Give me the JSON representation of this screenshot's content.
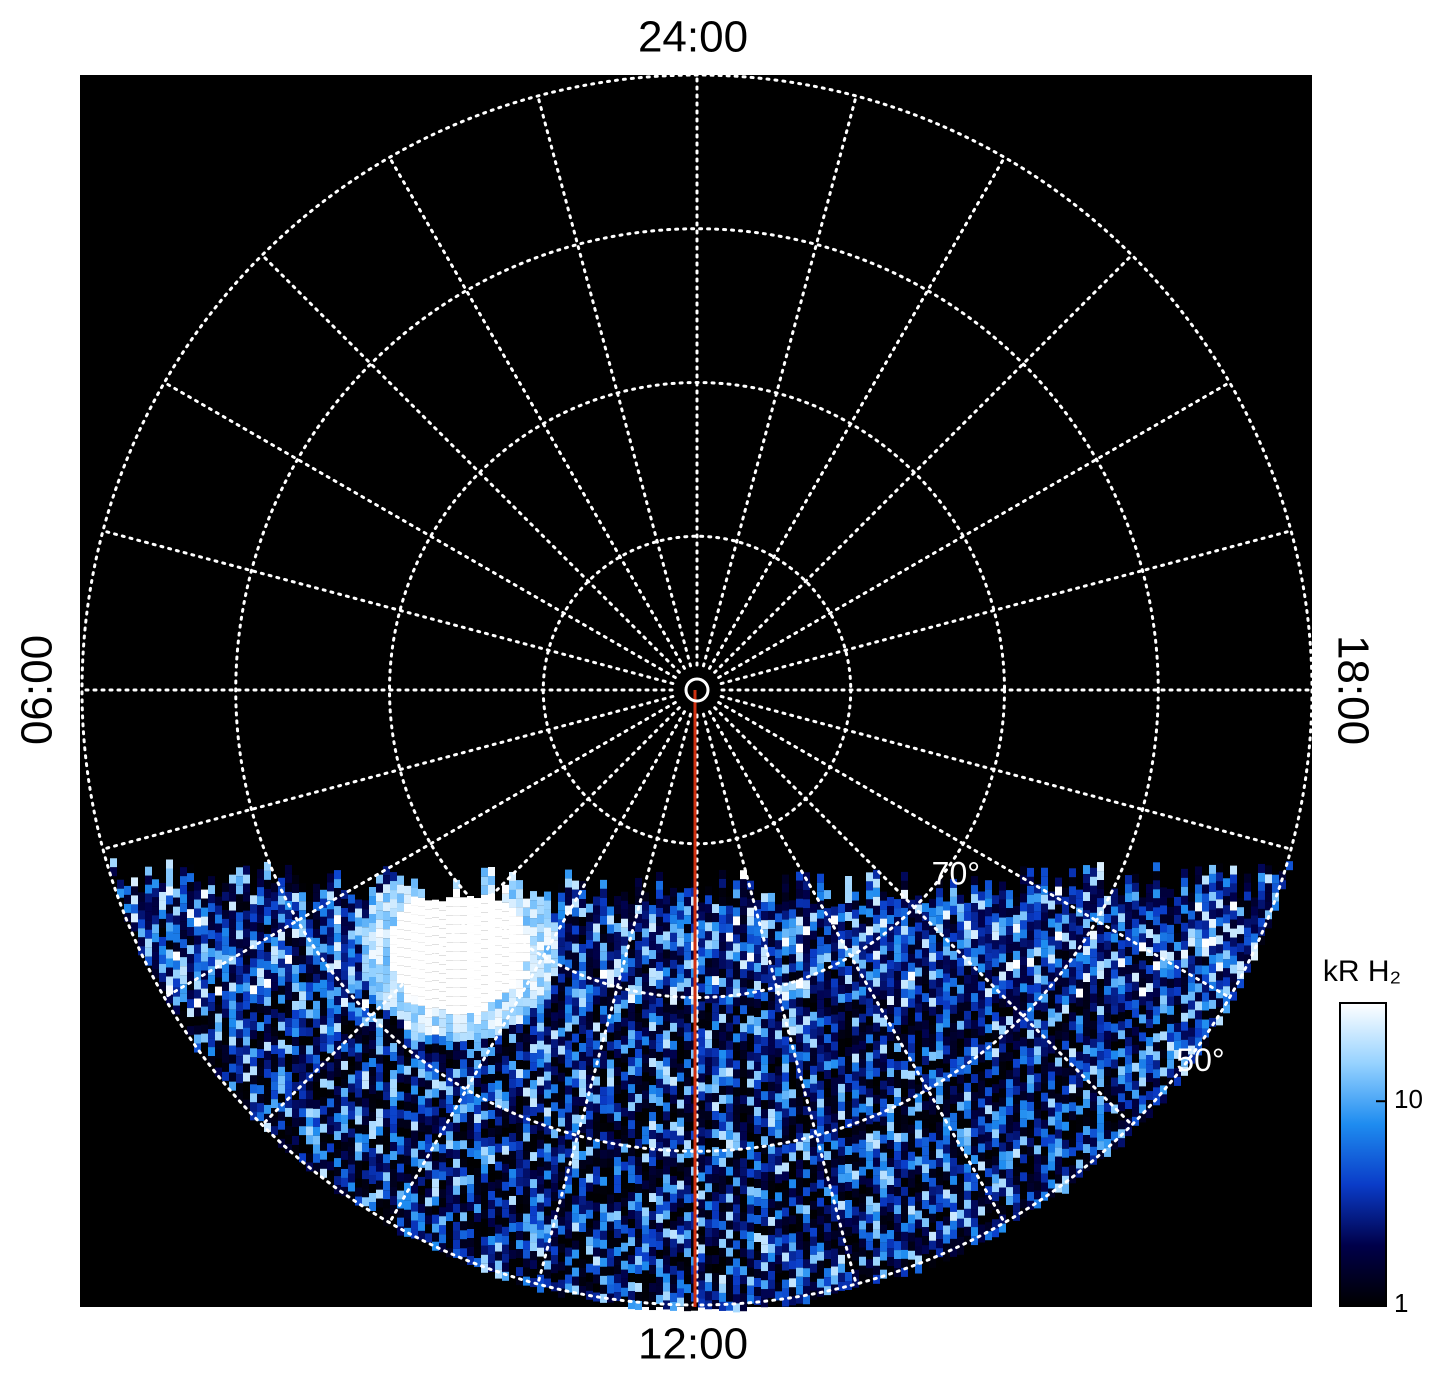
{
  "chart_data": {
    "type": "polar",
    "hour_labels": {
      "top": "24:00",
      "bottom": "12:00",
      "left": "06:00",
      "right": "18:00"
    },
    "rlim": [
      90,
      50
    ],
    "rgrid": [
      80,
      70,
      60,
      50
    ],
    "rlabels": [
      {
        "value": 70,
        "label": "70°"
      },
      {
        "value": 50,
        "label": "50°"
      }
    ],
    "colorbar": {
      "label": "kR H₂",
      "log": true,
      "clim": [
        1,
        30
      ],
      "ticks": [
        1,
        10
      ],
      "colors": [
        "#000000",
        "#00004a",
        "#0a3cc8",
        "#1e8cf0",
        "#96d2ff",
        "#ffffff"
      ]
    }
  }
}
